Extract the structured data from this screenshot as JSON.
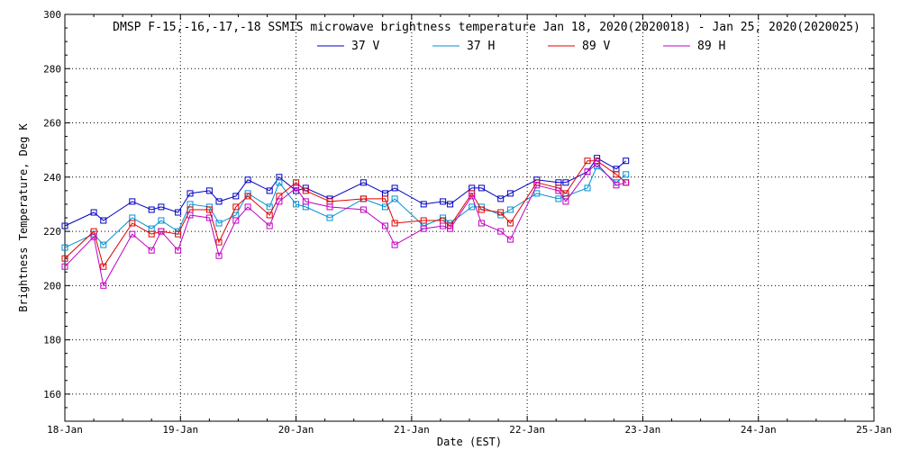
{
  "chart_data": {
    "type": "line",
    "title": "DMSP F-15,-16,-17,-18 SSMIS microwave brightness temperature Jan 18, 2020(2020018) - Jan 25, 2020(2020025)",
    "xlabel": "Date (EST)",
    "ylabel": "Brightness Temperature, Deg K",
    "xlim": [
      "2020-01-18T00:00",
      "2020-01-25T00:00"
    ],
    "ylim": [
      150,
      300
    ],
    "x_ticks": [
      "18-Jan",
      "19-Jan",
      "20-Jan",
      "21-Jan",
      "22-Jan",
      "23-Jan",
      "24-Jan",
      "25-Jan"
    ],
    "y_ticks": [
      160,
      180,
      200,
      220,
      240,
      260,
      280,
      300
    ],
    "grid": true,
    "legend_position": "top",
    "series": [
      {
        "name": "37 V",
        "color": "#0000c0",
        "points": [
          [
            "2020-01-18T00:00",
            222
          ],
          [
            "2020-01-18T06:00",
            227
          ],
          [
            "2020-01-18T08:00",
            224
          ],
          [
            "2020-01-18T14:00",
            231
          ],
          [
            "2020-01-18T18:00",
            228
          ],
          [
            "2020-01-18T20:00",
            229
          ],
          [
            "2020-01-18T23:30",
            227
          ],
          [
            "2020-01-19T02:00",
            234
          ],
          [
            "2020-01-19T06:00",
            235
          ],
          [
            "2020-01-19T08:00",
            231
          ],
          [
            "2020-01-19T11:30",
            233
          ],
          [
            "2020-01-19T14:00",
            239
          ],
          [
            "2020-01-19T18:30",
            235
          ],
          [
            "2020-01-19T20:30",
            240
          ],
          [
            "2020-01-20T00:00",
            235
          ],
          [
            "2020-01-20T02:00",
            236
          ],
          [
            "2020-01-20T07:00",
            232
          ],
          [
            "2020-01-20T14:00",
            238
          ],
          [
            "2020-01-20T18:30",
            234
          ],
          [
            "2020-01-20T20:30",
            236
          ],
          [
            "2020-01-21T02:30",
            230
          ],
          [
            "2020-01-21T06:30",
            231
          ],
          [
            "2020-01-21T08:00",
            230
          ],
          [
            "2020-01-21T12:30",
            236
          ],
          [
            "2020-01-21T14:30",
            236
          ],
          [
            "2020-01-21T18:30",
            232
          ],
          [
            "2020-01-21T20:30",
            234
          ],
          [
            "2020-01-22T02:00",
            239
          ],
          [
            "2020-01-22T06:30",
            238
          ],
          [
            "2020-01-22T08:00",
            238
          ],
          [
            "2020-01-22T12:30",
            242
          ],
          [
            "2020-01-22T14:30",
            247
          ],
          [
            "2020-01-22T18:30",
            243
          ],
          [
            "2020-01-22T20:30",
            246
          ]
        ]
      },
      {
        "name": "37 H",
        "color": "#0090d0",
        "points": [
          [
            "2020-01-18T00:00",
            214
          ],
          [
            "2020-01-18T06:00",
            219
          ],
          [
            "2020-01-18T08:00",
            215
          ],
          [
            "2020-01-18T14:00",
            225
          ],
          [
            "2020-01-18T18:00",
            221
          ],
          [
            "2020-01-18T20:00",
            224
          ],
          [
            "2020-01-18T23:30",
            220
          ],
          [
            "2020-01-19T02:00",
            230
          ],
          [
            "2020-01-19T06:00",
            229
          ],
          [
            "2020-01-19T08:00",
            223
          ],
          [
            "2020-01-19T11:30",
            226
          ],
          [
            "2020-01-19T14:00",
            234
          ],
          [
            "2020-01-19T18:30",
            229
          ],
          [
            "2020-01-19T20:30",
            238
          ],
          [
            "2020-01-20T00:00",
            230
          ],
          [
            "2020-01-20T02:00",
            229
          ],
          [
            "2020-01-20T07:00",
            225
          ],
          [
            "2020-01-20T14:00",
            232
          ],
          [
            "2020-01-20T18:30",
            229
          ],
          [
            "2020-01-20T20:30",
            232
          ],
          [
            "2020-01-21T02:30",
            222
          ],
          [
            "2020-01-21T06:30",
            225
          ],
          [
            "2020-01-21T08:00",
            223
          ],
          [
            "2020-01-21T12:30",
            229
          ],
          [
            "2020-01-21T14:30",
            229
          ],
          [
            "2020-01-21T18:30",
            226
          ],
          [
            "2020-01-21T20:30",
            228
          ],
          [
            "2020-01-22T02:00",
            234
          ],
          [
            "2020-01-22T06:30",
            232
          ],
          [
            "2020-01-22T08:00",
            233
          ],
          [
            "2020-01-22T12:30",
            236
          ],
          [
            "2020-01-22T14:30",
            244
          ],
          [
            "2020-01-22T18:30",
            238
          ],
          [
            "2020-01-22T20:30",
            241
          ]
        ]
      },
      {
        "name": "89 V",
        "color": "#e00000",
        "points": [
          [
            "2020-01-18T00:00",
            210
          ],
          [
            "2020-01-18T06:00",
            220
          ],
          [
            "2020-01-18T08:00",
            207
          ],
          [
            "2020-01-18T14:00",
            223
          ],
          [
            "2020-01-18T18:00",
            219
          ],
          [
            "2020-01-18T20:00",
            220
          ],
          [
            "2020-01-18T23:30",
            219
          ],
          [
            "2020-01-19T02:00",
            228
          ],
          [
            "2020-01-19T06:00",
            228
          ],
          [
            "2020-01-19T08:00",
            216
          ],
          [
            "2020-01-19T11:30",
            229
          ],
          [
            "2020-01-19T14:00",
            233
          ],
          [
            "2020-01-19T18:30",
            226
          ],
          [
            "2020-01-19T20:30",
            233
          ],
          [
            "2020-01-20T00:00",
            238
          ],
          [
            "2020-01-20T02:00",
            235
          ],
          [
            "2020-01-20T07:00",
            231
          ],
          [
            "2020-01-20T14:00",
            232
          ],
          [
            "2020-01-20T18:30",
            232
          ],
          [
            "2020-01-20T20:30",
            223
          ],
          [
            "2020-01-21T02:30",
            224
          ],
          [
            "2020-01-21T06:30",
            224
          ],
          [
            "2020-01-21T08:00",
            222
          ],
          [
            "2020-01-21T12:30",
            234
          ],
          [
            "2020-01-21T14:30",
            228
          ],
          [
            "2020-01-21T18:30",
            227
          ],
          [
            "2020-01-21T20:30",
            223
          ],
          [
            "2020-01-22T02:00",
            238
          ],
          [
            "2020-01-22T06:30",
            236
          ],
          [
            "2020-01-22T08:00",
            234
          ],
          [
            "2020-01-22T12:30",
            246
          ],
          [
            "2020-01-22T14:30",
            246
          ],
          [
            "2020-01-22T18:30",
            241
          ],
          [
            "2020-01-22T20:30",
            238
          ]
        ]
      },
      {
        "name": "89 H",
        "color": "#c000c0",
        "points": [
          [
            "2020-01-18T00:00",
            207
          ],
          [
            "2020-01-18T06:00",
            218
          ],
          [
            "2020-01-18T08:00",
            200
          ],
          [
            "2020-01-18T14:00",
            219
          ],
          [
            "2020-01-18T18:00",
            213
          ],
          [
            "2020-01-18T20:00",
            220
          ],
          [
            "2020-01-18T23:30",
            213
          ],
          [
            "2020-01-19T02:00",
            226
          ],
          [
            "2020-01-19T06:00",
            225
          ],
          [
            "2020-01-19T08:00",
            211
          ],
          [
            "2020-01-19T11:30",
            224
          ],
          [
            "2020-01-19T14:00",
            229
          ],
          [
            "2020-01-19T18:30",
            222
          ],
          [
            "2020-01-19T20:30",
            231
          ],
          [
            "2020-01-20T00:00",
            236
          ],
          [
            "2020-01-20T02:00",
            231
          ],
          [
            "2020-01-20T07:00",
            229
          ],
          [
            "2020-01-20T14:00",
            228
          ],
          [
            "2020-01-20T18:30",
            222
          ],
          [
            "2020-01-20T20:30",
            215
          ],
          [
            "2020-01-21T02:30",
            221
          ],
          [
            "2020-01-21T06:30",
            222
          ],
          [
            "2020-01-21T08:00",
            221
          ],
          [
            "2020-01-21T12:30",
            233
          ],
          [
            "2020-01-21T14:30",
            223
          ],
          [
            "2020-01-21T18:30",
            220
          ],
          [
            "2020-01-21T20:30",
            217
          ],
          [
            "2020-01-22T02:00",
            237
          ],
          [
            "2020-01-22T06:30",
            235
          ],
          [
            "2020-01-22T08:00",
            231
          ],
          [
            "2020-01-22T12:30",
            242
          ],
          [
            "2020-01-22T14:30",
            245
          ],
          [
            "2020-01-22T18:30",
            237
          ],
          [
            "2020-01-22T20:30",
            238
          ]
        ]
      }
    ]
  }
}
